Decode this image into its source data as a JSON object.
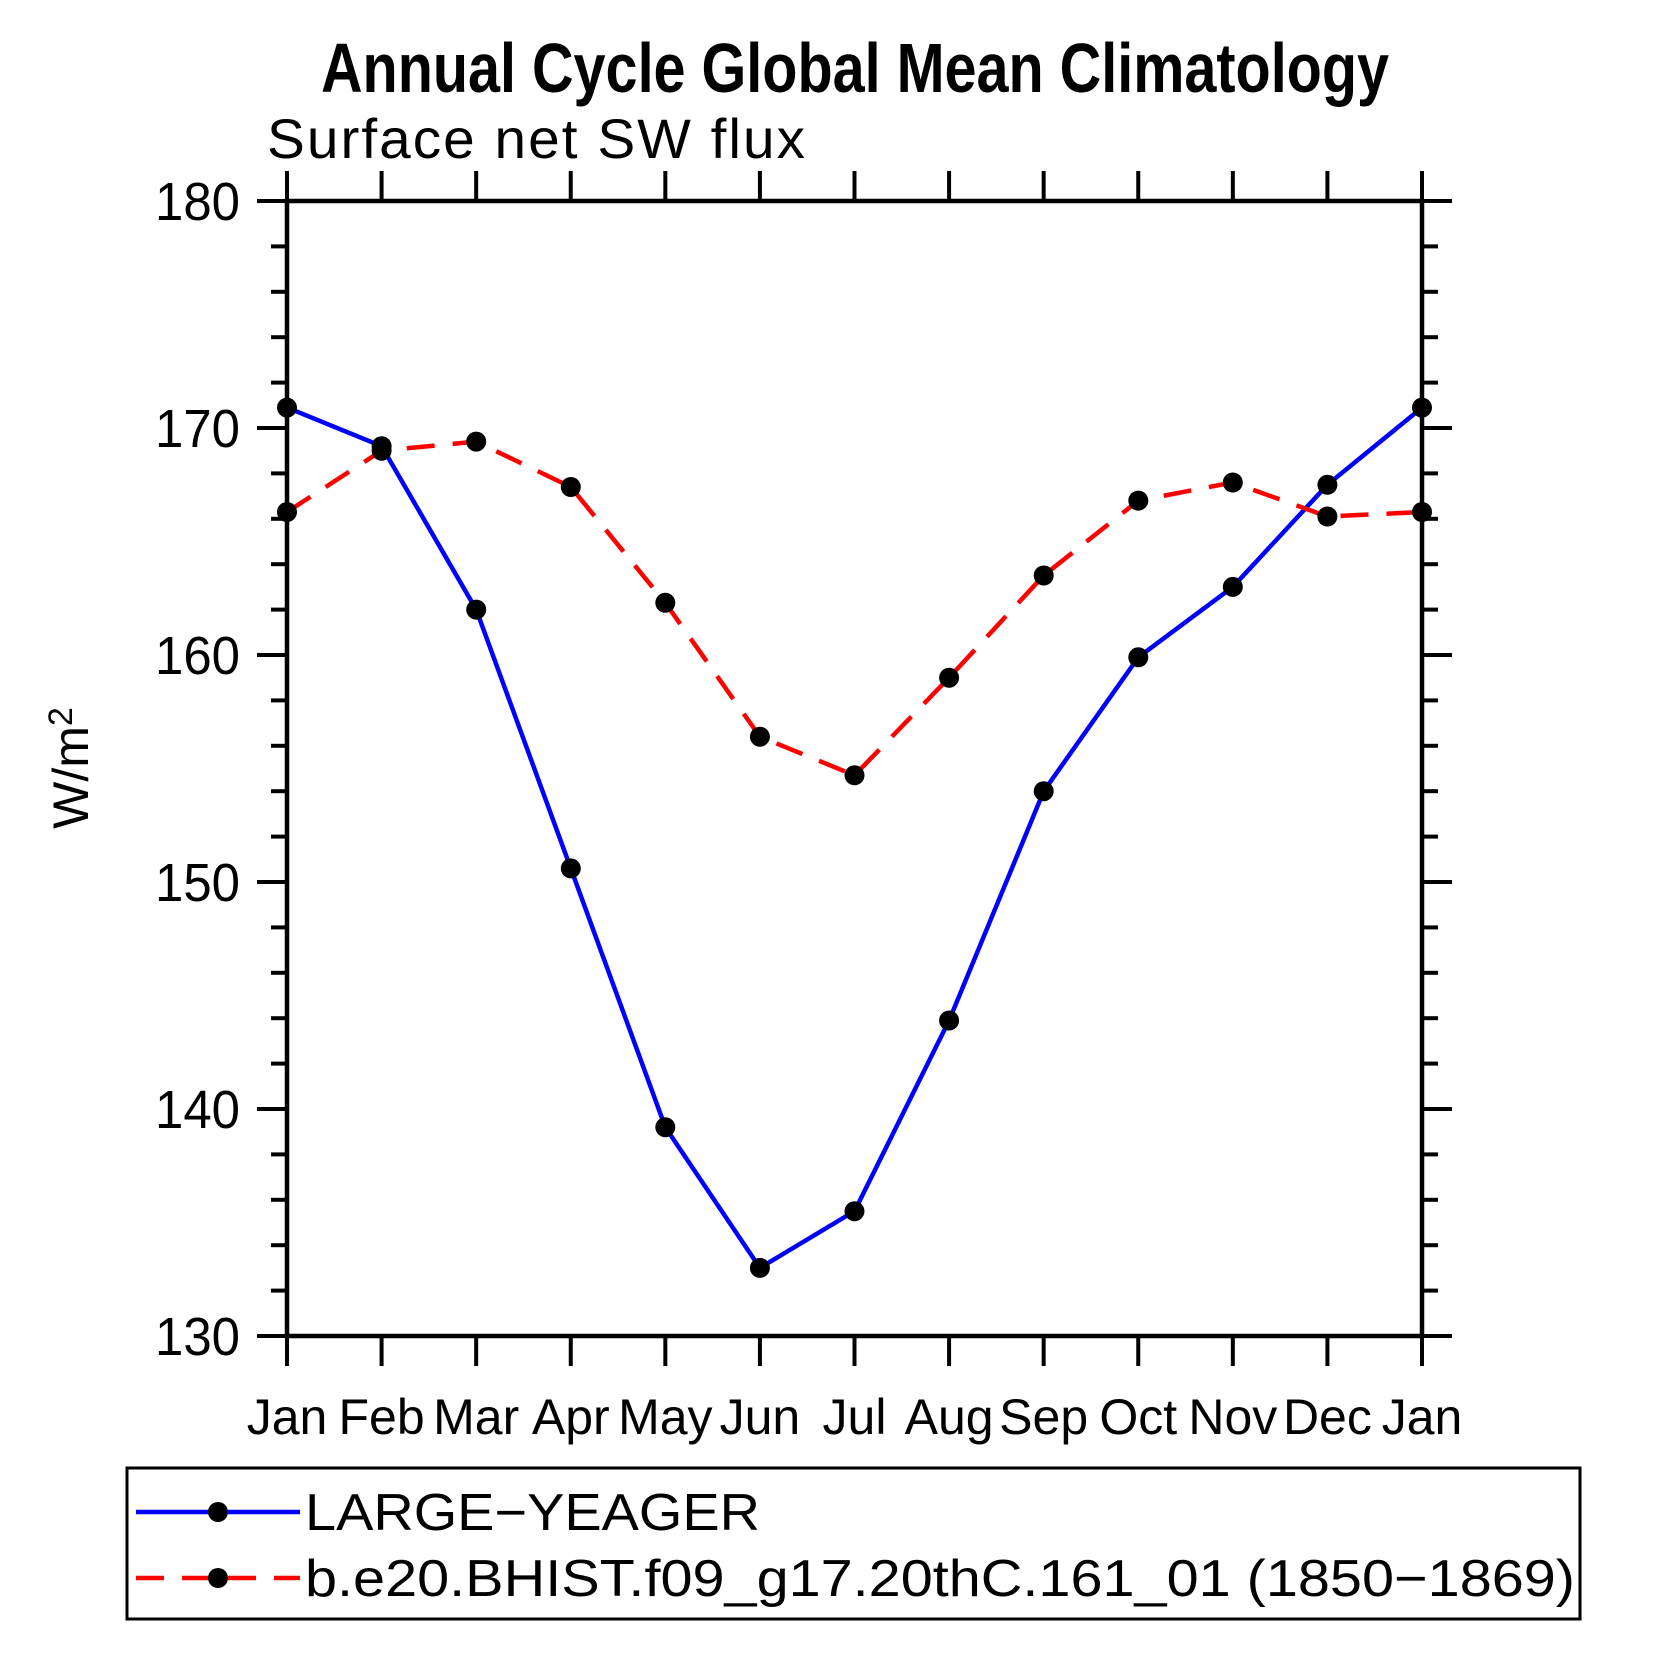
{
  "chart_data": {
    "type": "line",
    "title": "Annual Cycle Global Mean Climatology",
    "subtitle": "Surface net SW flux",
    "ylabel_text": "W/m",
    "ylabel_sup": "2",
    "categories": [
      "Jan",
      "Feb",
      "Mar",
      "Apr",
      "May",
      "Jun",
      "Jul",
      "Aug",
      "Sep",
      "Oct",
      "Nov",
      "Dec",
      "Jan"
    ],
    "series": [
      {
        "name": "LARGE−YEAGER",
        "color": "#0000ff",
        "line_style": "solid",
        "marker": "filled-circle",
        "marker_color": "#000000",
        "values": [
          170.9,
          169.2,
          162.0,
          150.6,
          139.2,
          133.0,
          135.5,
          143.9,
          154.0,
          159.9,
          163.0,
          167.5,
          170.9
        ]
      },
      {
        "name": "b.e20.BHIST.f09_g17.20thC.161_01 (1850−1869)",
        "color": "#ff0000",
        "line_style": "dashed",
        "marker": "filled-circle",
        "marker_color": "#000000",
        "values": [
          166.3,
          169.0,
          169.4,
          167.4,
          162.3,
          156.4,
          154.7,
          159.0,
          163.5,
          166.8,
          167.6,
          166.1,
          166.3
        ]
      }
    ],
    "ylim": [
      130,
      180
    ],
    "yticks": [
      130,
      140,
      150,
      160,
      170,
      180
    ],
    "yminor_step": 2,
    "grid": false,
    "tick_direction": "outward",
    "legend_position": "bottom-left-box",
    "axis_color": "#000000",
    "background_color": "#ffffff"
  }
}
